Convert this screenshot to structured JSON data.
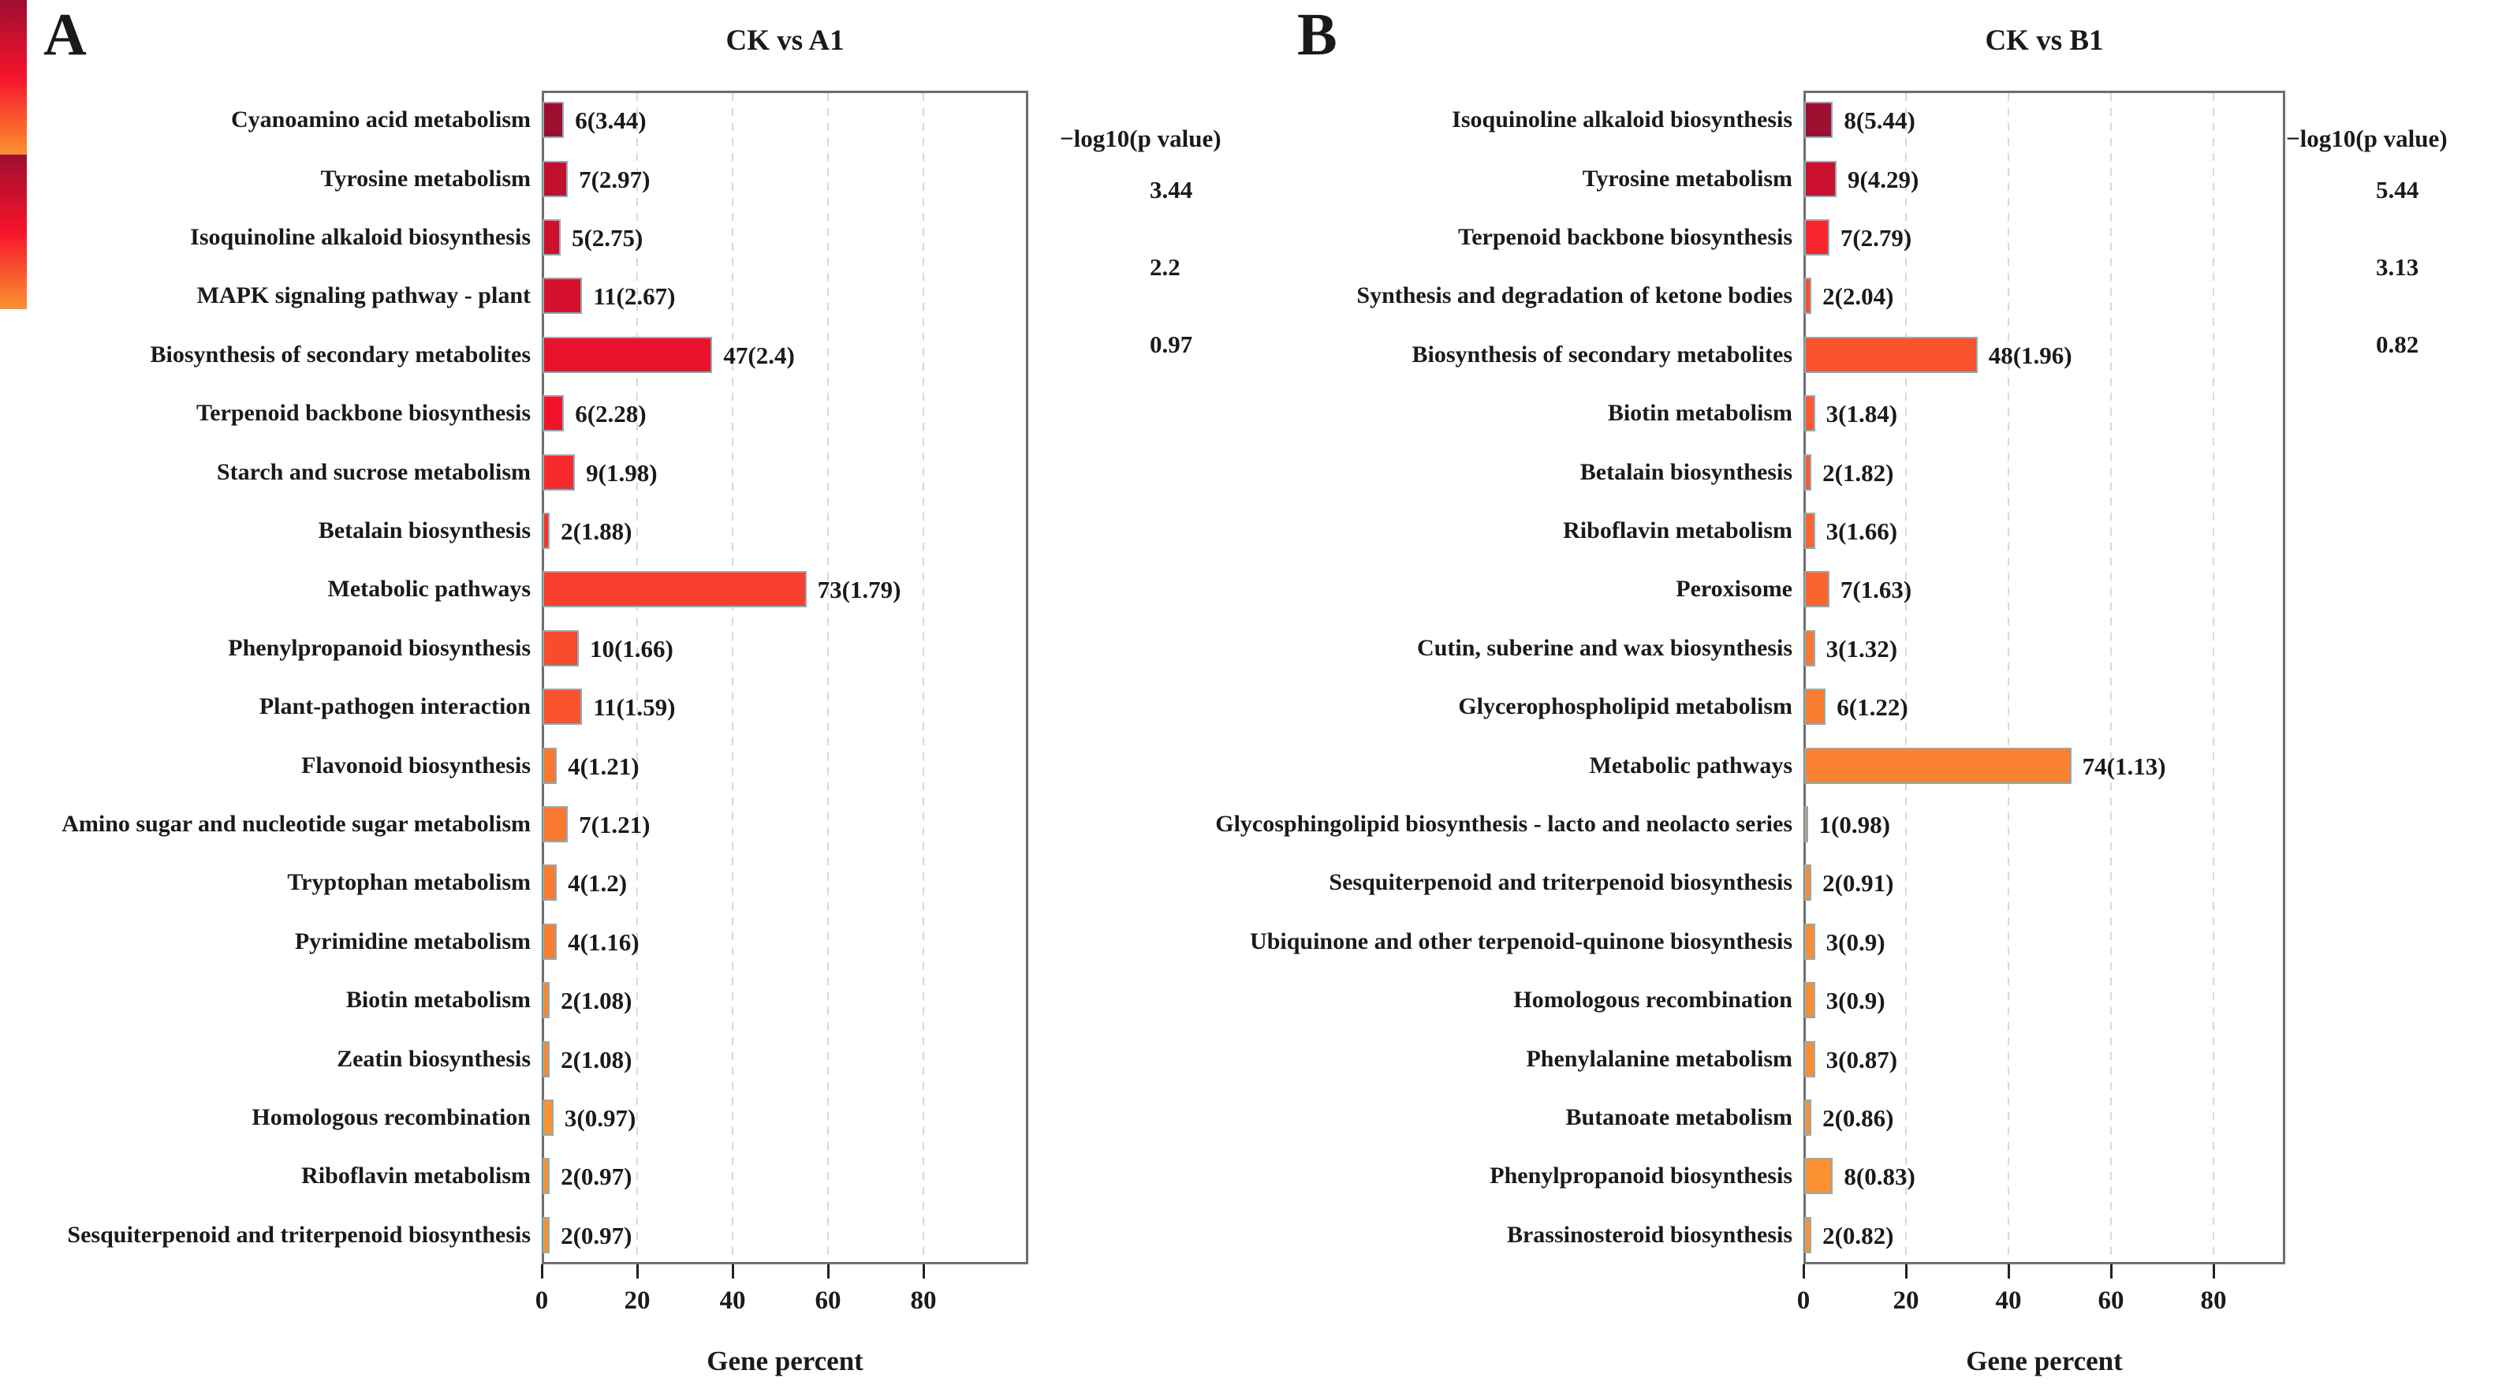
{
  "colors": {
    "scale_high": "#9E0E30",
    "scale_mid": "#F7132B",
    "scale_low": "#FB9230",
    "bar_border": "#8FABB5",
    "grid_line": "#D9D9D9",
    "panel_border": "#6E6E6E",
    "text": "#1A1A1A",
    "background": "#FFFFFF"
  },
  "chart_data": [
    {
      "type": "bar",
      "panel_letter": "A",
      "title": "CK vs A1",
      "xlabel": "Gene percent",
      "ylabel": "",
      "x_ticks": [
        0,
        20,
        40,
        60,
        80
      ],
      "xlim": [
        0,
        102
      ],
      "grid": "dashed-vertical",
      "legend_position": "right",
      "legend": {
        "title": "−log10(p value)",
        "tick_labels": [
          "3.44",
          "2.2",
          "0.97"
        ],
        "max": 3.44,
        "mid": 2.2,
        "min": 0.97
      },
      "rows": [
        {
          "label": "Cyanoamino acid metabolism",
          "genes": 6,
          "neg_log10_p": 3.44,
          "percent": 4.5,
          "value_label": "6(3.44)"
        },
        {
          "label": "Tyrosine metabolism",
          "genes": 7,
          "neg_log10_p": 2.97,
          "percent": 5.3,
          "value_label": "7(2.97)"
        },
        {
          "label": "Isoquinoline alkaloid biosynthesis",
          "genes": 5,
          "neg_log10_p": 2.75,
          "percent": 3.8,
          "value_label": "5(2.75)"
        },
        {
          "label": "MAPK signaling pathway - plant",
          "genes": 11,
          "neg_log10_p": 2.67,
          "percent": 8.3,
          "value_label": "11(2.67)"
        },
        {
          "label": "Biosynthesis of secondary metabolites",
          "genes": 47,
          "neg_log10_p": 2.4,
          "percent": 35.6,
          "value_label": "47(2.4)"
        },
        {
          "label": "Terpenoid backbone biosynthesis",
          "genes": 6,
          "neg_log10_p": 2.28,
          "percent": 4.5,
          "value_label": "6(2.28)"
        },
        {
          "label": "Starch and sucrose metabolism",
          "genes": 9,
          "neg_log10_p": 1.98,
          "percent": 6.8,
          "value_label": "9(1.98)"
        },
        {
          "label": "Betalain biosynthesis",
          "genes": 2,
          "neg_log10_p": 1.88,
          "percent": 1.5,
          "value_label": "2(1.88)"
        },
        {
          "label": "Metabolic pathways",
          "genes": 73,
          "neg_log10_p": 1.79,
          "percent": 55.3,
          "value_label": "73(1.79)"
        },
        {
          "label": "Phenylpropanoid biosynthesis",
          "genes": 10,
          "neg_log10_p": 1.66,
          "percent": 7.6,
          "value_label": "10(1.66)"
        },
        {
          "label": "Plant-pathogen interaction",
          "genes": 11,
          "neg_log10_p": 1.59,
          "percent": 8.3,
          "value_label": "11(1.59)"
        },
        {
          "label": "Flavonoid biosynthesis",
          "genes": 4,
          "neg_log10_p": 1.21,
          "percent": 3.0,
          "value_label": "4(1.21)"
        },
        {
          "label": "Amino sugar and nucleotide sugar metabolism",
          "genes": 7,
          "neg_log10_p": 1.21,
          "percent": 5.3,
          "value_label": "7(1.21)"
        },
        {
          "label": "Tryptophan metabolism",
          "genes": 4,
          "neg_log10_p": 1.2,
          "percent": 3.0,
          "value_label": "4(1.2)"
        },
        {
          "label": "Pyrimidine metabolism",
          "genes": 4,
          "neg_log10_p": 1.16,
          "percent": 3.0,
          "value_label": "4(1.16)"
        },
        {
          "label": "Biotin metabolism",
          "genes": 2,
          "neg_log10_p": 1.08,
          "percent": 1.5,
          "value_label": "2(1.08)"
        },
        {
          "label": "Zeatin biosynthesis",
          "genes": 2,
          "neg_log10_p": 1.08,
          "percent": 1.5,
          "value_label": "2(1.08)"
        },
        {
          "label": "Homologous recombination",
          "genes": 3,
          "neg_log10_p": 0.97,
          "percent": 2.3,
          "value_label": "3(0.97)"
        },
        {
          "label": "Riboflavin metabolism",
          "genes": 2,
          "neg_log10_p": 0.97,
          "percent": 1.5,
          "value_label": "2(0.97)"
        },
        {
          "label": "Sesquiterpenoid and triterpenoid biosynthesis",
          "genes": 2,
          "neg_log10_p": 0.97,
          "percent": 1.5,
          "value_label": "2(0.97)"
        }
      ]
    },
    {
      "type": "bar",
      "panel_letter": "B",
      "title": "CK vs B1",
      "xlabel": "Gene percent",
      "ylabel": "",
      "x_ticks": [
        0,
        20,
        40,
        60,
        80
      ],
      "xlim": [
        0,
        94
      ],
      "grid": "dashed-vertical",
      "legend_position": "right",
      "legend": {
        "title": "−log10(p value)",
        "tick_labels": [
          "5.44",
          "3.13",
          "0.82"
        ],
        "max": 5.44,
        "mid": 3.13,
        "min": 0.82
      },
      "rows": [
        {
          "label": "Isoquinoline alkaloid biosynthesis",
          "genes": 8,
          "neg_log10_p": 5.44,
          "percent": 5.6,
          "value_label": "8(5.44)"
        },
        {
          "label": "Tyrosine metabolism",
          "genes": 9,
          "neg_log10_p": 4.29,
          "percent": 6.3,
          "value_label": "9(4.29)"
        },
        {
          "label": "Terpenoid backbone biosynthesis",
          "genes": 7,
          "neg_log10_p": 2.79,
          "percent": 4.9,
          "value_label": "7(2.79)"
        },
        {
          "label": "Synthesis and degradation of ketone bodies",
          "genes": 2,
          "neg_log10_p": 2.04,
          "percent": 1.4,
          "value_label": "2(2.04)"
        },
        {
          "label": "Biosynthesis of secondary metabolites",
          "genes": 48,
          "neg_log10_p": 1.96,
          "percent": 33.8,
          "value_label": "48(1.96)"
        },
        {
          "label": "Biotin metabolism",
          "genes": 3,
          "neg_log10_p": 1.84,
          "percent": 2.1,
          "value_label": "3(1.84)"
        },
        {
          "label": "Betalain biosynthesis",
          "genes": 2,
          "neg_log10_p": 1.82,
          "percent": 1.4,
          "value_label": "2(1.82)"
        },
        {
          "label": "Riboflavin metabolism",
          "genes": 3,
          "neg_log10_p": 1.66,
          "percent": 2.1,
          "value_label": "3(1.66)"
        },
        {
          "label": "Peroxisome",
          "genes": 7,
          "neg_log10_p": 1.63,
          "percent": 4.9,
          "value_label": "7(1.63)"
        },
        {
          "label": "Cutin, suberine and wax biosynthesis",
          "genes": 3,
          "neg_log10_p": 1.32,
          "percent": 2.1,
          "value_label": "3(1.32)"
        },
        {
          "label": "Glycerophospholipid metabolism",
          "genes": 6,
          "neg_log10_p": 1.22,
          "percent": 4.2,
          "value_label": "6(1.22)"
        },
        {
          "label": "Metabolic pathways",
          "genes": 74,
          "neg_log10_p": 1.13,
          "percent": 52.1,
          "value_label": "74(1.13)"
        },
        {
          "label": "Glycosphingolipid biosynthesis - lacto and neolacto series",
          "genes": 1,
          "neg_log10_p": 0.98,
          "percent": 0.7,
          "value_label": "1(0.98)"
        },
        {
          "label": "Sesquiterpenoid and triterpenoid biosynthesis",
          "genes": 2,
          "neg_log10_p": 0.91,
          "percent": 1.4,
          "value_label": "2(0.91)"
        },
        {
          "label": "Ubiquinone and other terpenoid-quinone biosynthesis",
          "genes": 3,
          "neg_log10_p": 0.9,
          "percent": 2.1,
          "value_label": "3(0.9)"
        },
        {
          "label": "Homologous recombination",
          "genes": 3,
          "neg_log10_p": 0.9,
          "percent": 2.1,
          "value_label": "3(0.9)"
        },
        {
          "label": "Phenylalanine metabolism",
          "genes": 3,
          "neg_log10_p": 0.87,
          "percent": 2.1,
          "value_label": "3(0.87)"
        },
        {
          "label": "Butanoate metabolism",
          "genes": 2,
          "neg_log10_p": 0.86,
          "percent": 1.4,
          "value_label": "2(0.86)"
        },
        {
          "label": "Phenylpropanoid biosynthesis",
          "genes": 8,
          "neg_log10_p": 0.83,
          "percent": 5.6,
          "value_label": "8(0.83)"
        },
        {
          "label": "Brassinosteroid biosynthesis",
          "genes": 2,
          "neg_log10_p": 0.82,
          "percent": 1.4,
          "value_label": "2(0.82)"
        }
      ]
    }
  ]
}
